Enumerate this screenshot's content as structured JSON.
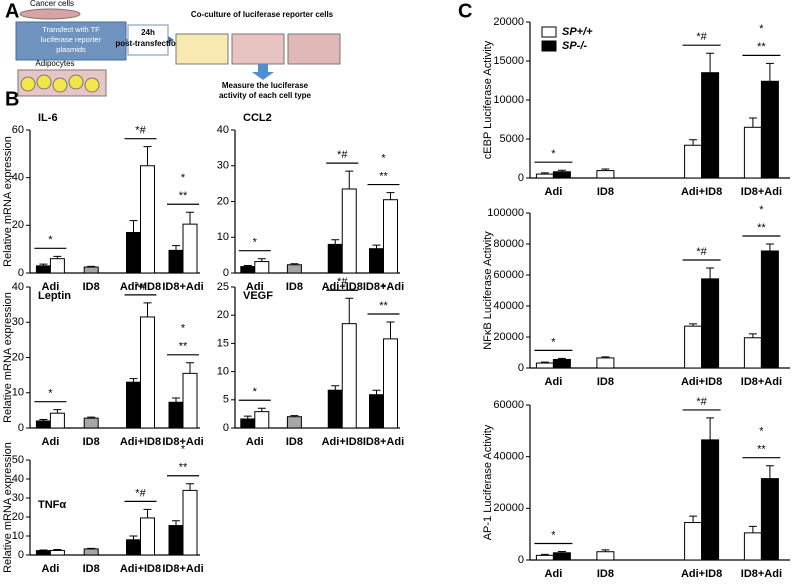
{
  "panel_labels": [
    "A",
    "B",
    "C"
  ],
  "diagram": {
    "cancer_cells": "Cancer cells",
    "transfect_lines": [
      "Transfect with TF",
      "luciferase reporter",
      "plasmids"
    ],
    "adipocytes": "Adipocytes",
    "arrow_lines": [
      "24h",
      "post-transfection"
    ],
    "coculture": "Co-culture of luciferase reporter cells",
    "measure_lines": [
      "Measure the luciferase",
      "activity of each cell type"
    ]
  },
  "chart_data": [
    {
      "type": "bar",
      "title": "IL-6",
      "ylabel": "Relative mRNA expression",
      "categories": [
        "Adi",
        "ID8",
        "Adi+ID8",
        "ID8+Adi"
      ],
      "series": [
        {
          "color": "#000000",
          "values": [
            3,
            null,
            17,
            9.5
          ],
          "errors": [
            0.7,
            null,
            5,
            2
          ]
        },
        {
          "color": "#ffffff",
          "values": [
            6,
            null,
            45,
            20.5
          ],
          "errors": [
            1,
            null,
            8,
            5
          ]
        },
        {
          "color": "#a6a6a6",
          "values": [
            null,
            2.5,
            null,
            null
          ],
          "errors": [
            null,
            0.3,
            null,
            null
          ]
        }
      ],
      "ylim": [
        0,
        60
      ],
      "yticks": [
        0,
        20,
        40,
        60
      ],
      "annotations": [
        {
          "text": "*",
          "category": "Adi"
        },
        {
          "text": "*#",
          "category": "Adi+ID8"
        },
        {
          "text": "**",
          "category": "ID8+Adi"
        },
        {
          "text": "*",
          "category": "ID8+Adi"
        }
      ]
    },
    {
      "type": "bar",
      "title": "CCL2",
      "categories": [
        "Adi",
        "ID8",
        "Adi+ID8",
        "ID8+Adi"
      ],
      "series": [
        {
          "color": "#000000",
          "values": [
            1.8,
            null,
            8,
            6.8
          ],
          "errors": [
            0.3,
            null,
            1.3,
            1
          ]
        },
        {
          "color": "#ffffff",
          "values": [
            3.2,
            null,
            23.5,
            20.5
          ],
          "errors": [
            0.8,
            null,
            5,
            2
          ]
        },
        {
          "color": "#a6a6a6",
          "values": [
            null,
            2.3,
            null,
            null
          ],
          "errors": [
            null,
            0.3,
            null,
            null
          ]
        }
      ],
      "ylim": [
        0,
        40
      ],
      "yticks": [
        0,
        10,
        20,
        30,
        40
      ],
      "annotations": [
        {
          "text": "*",
          "category": "Adi"
        },
        {
          "text": "*#",
          "category": "Adi+ID8"
        },
        {
          "text": "**",
          "category": "ID8+Adi"
        },
        {
          "text": "*",
          "category": "ID8+Adi"
        }
      ]
    },
    {
      "type": "bar",
      "title": "Leptin",
      "ylabel": "Relative mRNA expression",
      "categories": [
        "Adi",
        "ID8",
        "Adi+ID8",
        "ID8+Adi"
      ],
      "series": [
        {
          "color": "#000000",
          "values": [
            2,
            null,
            13,
            7.3
          ],
          "errors": [
            0.4,
            null,
            1,
            1.2
          ]
        },
        {
          "color": "#ffffff",
          "values": [
            4.2,
            null,
            31.5,
            15.5
          ],
          "errors": [
            1,
            null,
            4,
            3
          ]
        },
        {
          "color": "#a6a6a6",
          "values": [
            null,
            2.8,
            null,
            null
          ],
          "errors": [
            null,
            0.3,
            null,
            null
          ]
        }
      ],
      "ylim": [
        0,
        40
      ],
      "yticks": [
        0,
        10,
        20,
        30,
        40
      ],
      "annotations": [
        {
          "text": "*",
          "category": "Adi"
        },
        {
          "text": "*#",
          "category": "Adi+ID8"
        },
        {
          "text": "**",
          "category": "ID8+Adi"
        },
        {
          "text": "*",
          "category": "ID8+Adi"
        }
      ]
    },
    {
      "type": "bar",
      "title": "VEGF",
      "categories": [
        "Adi",
        "ID8",
        "Adi+ID8",
        "ID8+Adi"
      ],
      "series": [
        {
          "color": "#000000",
          "values": [
            1.6,
            null,
            6.7,
            5.9
          ],
          "errors": [
            0.5,
            null,
            0.8,
            0.8
          ]
        },
        {
          "color": "#ffffff",
          "values": [
            2.9,
            null,
            18.5,
            15.8
          ],
          "errors": [
            0.6,
            null,
            4.5,
            3
          ]
        },
        {
          "color": "#a6a6a6",
          "values": [
            null,
            2,
            null,
            null
          ],
          "errors": [
            null,
            0.2,
            null,
            null
          ]
        }
      ],
      "ylim": [
        0,
        25
      ],
      "yticks": [
        0,
        5,
        10,
        15,
        20,
        25
      ],
      "annotations": [
        {
          "text": "*",
          "category": "Adi"
        },
        {
          "text": "*#",
          "category": "Adi+ID8"
        },
        {
          "text": "**",
          "category": "ID8+Adi"
        },
        {
          "text": "*",
          "category": "ID8+Adi"
        }
      ]
    },
    {
      "type": "bar",
      "title": "TNFα",
      "ylabel": "Relative mRNA expression",
      "categories": [
        "Adi",
        "ID8",
        "Adi+ID8",
        "ID8+Adi"
      ],
      "series": [
        {
          "color": "#000000",
          "values": [
            2.3,
            null,
            8,
            15.5
          ],
          "errors": [
            0.3,
            null,
            2,
            2.5
          ]
        },
        {
          "color": "#ffffff",
          "values": [
            2.4,
            null,
            19.5,
            34
          ],
          "errors": [
            0.5,
            null,
            4.5,
            3.5
          ]
        },
        {
          "color": "#a6a6a6",
          "values": [
            null,
            3.2,
            null,
            null
          ],
          "errors": [
            null,
            0.3,
            null,
            null
          ]
        }
      ],
      "ylim": [
        0,
        50
      ],
      "yticks": [
        0,
        10,
        20,
        30,
        40,
        50
      ],
      "annotations": [
        {
          "text": "*#",
          "category": "Adi+ID8"
        },
        {
          "text": "**",
          "category": "ID8+Adi"
        },
        {
          "text": "*",
          "category": "ID8+Adi"
        }
      ]
    },
    {
      "type": "bar",
      "ylabel": "cEBP Luciferase Activity",
      "categories": [
        "Adi",
        "ID8",
        "Adi+ID8",
        "ID8+Adi"
      ],
      "legend": "upper left",
      "series": [
        {
          "name": "SP+/+",
          "color": "#ffffff",
          "values": [
            500,
            950,
            4200,
            6500
          ],
          "errors": [
            150,
            200,
            700,
            1200
          ]
        },
        {
          "name": "SP-/-",
          "color": "#000000",
          "values": [
            800,
            null,
            13500,
            12400
          ],
          "errors": [
            200,
            null,
            2500,
            2300
          ]
        }
      ],
      "ylim": [
        0,
        20000
      ],
      "yticks": [
        0,
        5000,
        10000,
        15000,
        20000
      ],
      "annotations": [
        {
          "text": "*",
          "category": "Adi"
        },
        {
          "text": "*#",
          "category": "Adi+ID8"
        },
        {
          "text": "**",
          "category": "ID8+Adi"
        },
        {
          "text": "*",
          "category": "ID8+Adi"
        }
      ]
    },
    {
      "type": "bar",
      "ylabel": "NFκB Luciferase Activity",
      "categories": [
        "Adi",
        "ID8",
        "Adi+ID8",
        "ID8+Adi"
      ],
      "series": [
        {
          "color": "#ffffff",
          "values": [
            3200,
            6500,
            27000,
            19500
          ],
          "errors": [
            600,
            700,
            1500,
            2500
          ]
        },
        {
          "color": "#000000",
          "values": [
            5500,
            null,
            57500,
            75500
          ],
          "errors": [
            700,
            null,
            7000,
            4500
          ]
        }
      ],
      "ylim": [
        0,
        100000
      ],
      "yticks": [
        0,
        20000,
        40000,
        60000,
        80000,
        100000
      ],
      "annotations": [
        {
          "text": "*",
          "category": "Adi"
        },
        {
          "text": "*#",
          "category": "Adi+ID8"
        },
        {
          "text": "**",
          "category": "ID8+Adi"
        },
        {
          "text": "*",
          "category": "ID8+Adi"
        }
      ]
    },
    {
      "type": "bar",
      "ylabel": "AP-1 Luciferase Activity",
      "categories": [
        "Adi",
        "ID8",
        "Adi+ID8",
        "ID8+Adi"
      ],
      "series": [
        {
          "color": "#ffffff",
          "values": [
            1800,
            3200,
            14500,
            10500
          ],
          "errors": [
            400,
            700,
            2500,
            2500
          ]
        },
        {
          "color": "#000000",
          "values": [
            2800,
            null,
            46500,
            31500
          ],
          "errors": [
            500,
            null,
            8500,
            5000
          ]
        }
      ],
      "ylim": [
        0,
        60000
      ],
      "yticks": [
        0,
        20000,
        40000,
        60000
      ],
      "annotations": [
        {
          "text": "*",
          "category": "Adi"
        },
        {
          "text": "*#",
          "category": "Adi+ID8"
        },
        {
          "text": "**",
          "category": "ID8+Adi"
        },
        {
          "text": "*",
          "category": "ID8+Adi"
        }
      ]
    }
  ]
}
